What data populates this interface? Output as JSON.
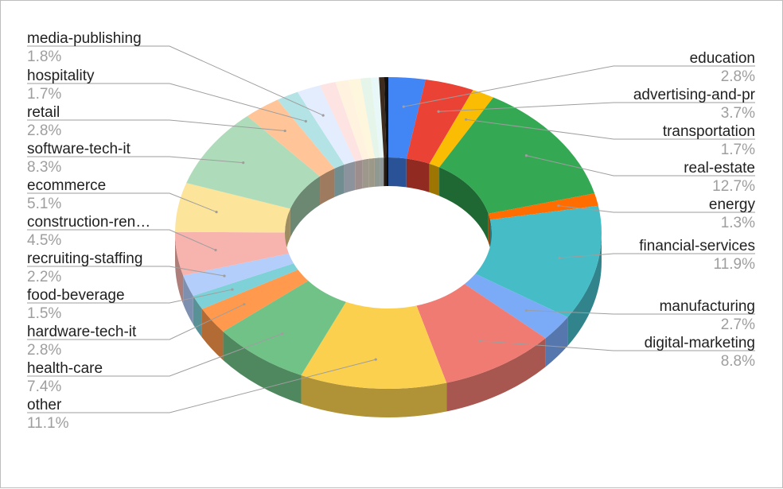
{
  "chart_data": {
    "type": "pie",
    "variant": "3d-donut",
    "title": "",
    "slices": [
      {
        "label": "education",
        "value": 2.8,
        "pct_label": "2.8%",
        "color": "#4285f4"
      },
      {
        "label": "advertising-and-pr",
        "value": 3.7,
        "pct_label": "3.7%",
        "color": "#ea4335"
      },
      {
        "label": "transportation",
        "value": 1.7,
        "pct_label": "1.7%",
        "color": "#fbbc04"
      },
      {
        "label": "real-estate",
        "value": 12.7,
        "pct_label": "12.7%",
        "color": "#34a853"
      },
      {
        "label": "energy",
        "value": 1.3,
        "pct_label": "1.3%",
        "color": "#ff6d01"
      },
      {
        "label": "financial-services",
        "value": 11.9,
        "pct_label": "11.9%",
        "color": "#46bdc6"
      },
      {
        "label": "manufacturing",
        "value": 2.7,
        "pct_label": "2.7%",
        "color": "#7baaf7"
      },
      {
        "label": "digital-marketing",
        "value": 8.8,
        "pct_label": "8.8%",
        "color": "#f07b72"
      },
      {
        "label": "other",
        "value": 11.1,
        "pct_label": "11.1%",
        "color": "#fcd04f"
      },
      {
        "label": "health-care",
        "value": 7.4,
        "pct_label": "7.4%",
        "color": "#71c287"
      },
      {
        "label": "hardware-tech-it",
        "value": 2.8,
        "pct_label": "2.8%",
        "color": "#ff994d"
      },
      {
        "label": "food-beverage",
        "value": 1.5,
        "pct_label": "1.5%",
        "color": "#7ed1d7"
      },
      {
        "label": "recruiting-staffing",
        "value": 2.2,
        "pct_label": "2.2%",
        "color": "#b3cefb"
      },
      {
        "label": "construction-ren…",
        "value": 4.5,
        "pct_label": "4.5%",
        "color": "#f7b4ae"
      },
      {
        "label": "ecommerce",
        "value": 5.1,
        "pct_label": "5.1%",
        "color": "#fde49b"
      },
      {
        "label": "software-tech-it",
        "value": 8.3,
        "pct_label": "8.3%",
        "color": "#aedcba"
      },
      {
        "label": "retail",
        "value": 2.8,
        "pct_label": "2.8%",
        "color": "#ffc599"
      },
      {
        "label": "hospitality",
        "value": 1.7,
        "pct_label": "1.7%",
        "color": "#b4e3e6"
      },
      {
        "label": "media-publishing",
        "value": 1.8,
        "pct_label": "1.8%",
        "color": "#e3edfd"
      },
      {
        "label": "",
        "value": 1.2,
        "color": "#fde3e1"
      },
      {
        "label": "",
        "value": 1.0,
        "color": "#fff3e0"
      },
      {
        "label": "",
        "value": 0.9,
        "color": "#fef6dd"
      },
      {
        "label": "",
        "value": 0.8,
        "color": "#e6f5ea"
      },
      {
        "label": "",
        "value": 0.6,
        "color": "#e8f7f8"
      },
      {
        "label": "",
        "value": 0.4,
        "color": "#3d2b1f"
      },
      {
        "label": "",
        "value": 0.3,
        "color": "#111111"
      }
    ],
    "legend": "none"
  }
}
